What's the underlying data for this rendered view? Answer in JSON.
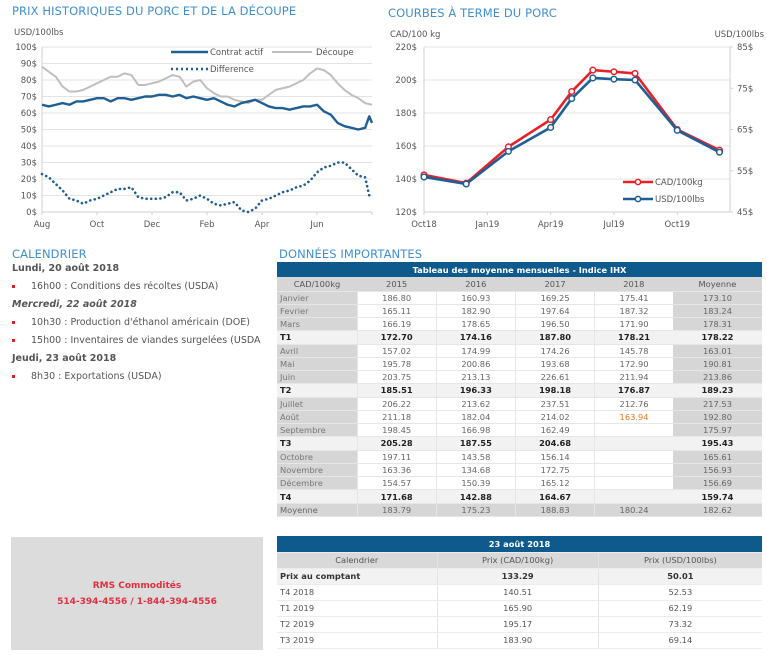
{
  "historical_section": {
    "title": "PRIX HISTORIQUES DU PORC ET DE LA DÉCOUPE"
  },
  "forward_section": {
    "title": "COURBES À TERME DU PORC"
  },
  "chart_data": [
    {
      "type": "line",
      "title": "PRIX HISTORIQUES DU PORC ET DE LA DÉCOUPE",
      "ylabel": "USD/100lbs",
      "xlabel": "",
      "ylim": [
        0,
        100
      ],
      "yticks": [
        "0$",
        "10$",
        "20$",
        "30$",
        "40$",
        "50$",
        "60$",
        "70$",
        "80$",
        "90$",
        "100$"
      ],
      "x_tick_labels": [
        "Aug",
        "Oct",
        "Dec",
        "Feb",
        "Apr",
        "Jun"
      ],
      "x_tick_positions": [
        0,
        2,
        4,
        6,
        8,
        10
      ],
      "x_range": [
        0,
        12
      ],
      "grid": true,
      "legend": "top-right",
      "series": [
        {
          "name": "Contrat actif",
          "style": "solid",
          "color": "#1f5f93",
          "x": [
            0,
            0.25,
            0.5,
            0.75,
            1,
            1.25,
            1.5,
            1.75,
            2,
            2.25,
            2.5,
            2.75,
            3,
            3.25,
            3.5,
            3.75,
            4,
            4.25,
            4.5,
            4.75,
            5,
            5.25,
            5.5,
            5.75,
            6,
            6.25,
            6.5,
            6.75,
            7,
            7.25,
            7.5,
            7.75,
            8,
            8.25,
            8.5,
            8.75,
            9,
            9.25,
            9.5,
            9.75,
            10,
            10.25,
            10.5,
            10.75,
            11,
            11.25,
            11.5,
            11.75,
            11.9,
            12
          ],
          "values": [
            65,
            64,
            65,
            66,
            65,
            67,
            67,
            68,
            69,
            69,
            67,
            69,
            69,
            68,
            69,
            70,
            70,
            71,
            71,
            70,
            71,
            69,
            70,
            69,
            68,
            69,
            67,
            65,
            64,
            66,
            67,
            68,
            66,
            64,
            63,
            63,
            62,
            63,
            64,
            64,
            65,
            61,
            59,
            54,
            52,
            51,
            50,
            51,
            58,
            54
          ]
        },
        {
          "name": "Découpe",
          "style": "solid",
          "color": "#bfbfbf",
          "x": [
            0,
            0.25,
            0.5,
            0.75,
            1,
            1.25,
            1.5,
            1.75,
            2,
            2.25,
            2.5,
            2.75,
            3,
            3.25,
            3.5,
            3.75,
            4,
            4.25,
            4.5,
            4.75,
            5,
            5.25,
            5.5,
            5.75,
            6,
            6.25,
            6.5,
            6.75,
            7,
            7.25,
            7.5,
            7.75,
            8,
            8.25,
            8.5,
            8.75,
            9,
            9.25,
            9.5,
            9.75,
            10,
            10.25,
            10.5,
            10.75,
            11,
            11.25,
            11.5,
            11.75,
            12
          ],
          "values": [
            88,
            85,
            82,
            76,
            73,
            73,
            74,
            76,
            78,
            80,
            82,
            82,
            84,
            83,
            77,
            77,
            78,
            79,
            81,
            83,
            82,
            76,
            79,
            80,
            75,
            72,
            70,
            70,
            68,
            67,
            66,
            68,
            68,
            71,
            74,
            75,
            76,
            78,
            80,
            84,
            87,
            86,
            83,
            78,
            74,
            71,
            69,
            66,
            65
          ]
        },
        {
          "name": "Difference",
          "style": "dotted",
          "color": "#1f5f93",
          "x": [
            0,
            0.25,
            0.5,
            0.75,
            1,
            1.25,
            1.5,
            1.75,
            2,
            2.25,
            2.5,
            2.75,
            3,
            3.25,
            3.5,
            3.75,
            4,
            4.25,
            4.5,
            4.75,
            5,
            5.25,
            5.5,
            5.75,
            6,
            6.25,
            6.5,
            6.75,
            7,
            7.25,
            7.5,
            7.75,
            8,
            8.25,
            8.5,
            8.75,
            9,
            9.25,
            9.5,
            9.75,
            10,
            10.25,
            10.5,
            10.75,
            11,
            11.25,
            11.5,
            11.75,
            11.9,
            12
          ],
          "values": [
            23,
            21,
            17,
            13,
            8,
            7,
            5,
            7,
            8,
            10,
            12,
            14,
            14,
            15,
            9,
            8,
            8,
            8,
            9,
            12,
            12,
            7,
            8,
            10,
            8,
            5,
            4,
            5,
            6,
            1,
            0,
            2,
            7,
            8,
            10,
            12,
            13,
            15,
            16,
            19,
            24,
            27,
            28,
            30,
            30,
            26,
            22,
            21,
            10,
            11
          ]
        }
      ]
    },
    {
      "type": "line",
      "title": "COURBES À TERME DU PORC",
      "ylabel": "CAD/100 kg",
      "ylabel_right": "USD/100lbs",
      "ylim": [
        120,
        220
      ],
      "ylim_right": [
        45,
        85
      ],
      "yticks": [
        "120$",
        "140$",
        "160$",
        "180$",
        "200$",
        "220$"
      ],
      "yticks_right": [
        "45$",
        "55$",
        "65$",
        "75$",
        "85$"
      ],
      "x_tick_labels": [
        "Oct18",
        "Jan19",
        "Apr19",
        "Jul19",
        "Oct19"
      ],
      "x_tick_positions": [
        0,
        3,
        6,
        9,
        12
      ],
      "x_range": [
        0,
        14.5
      ],
      "grid": true,
      "legend": "bottom-right",
      "series": [
        {
          "name": "CAD/100kg",
          "axis": "left",
          "color": "#e8202a",
          "x": [
            0,
            2,
            4,
            6,
            7,
            8,
            9,
            10,
            12,
            14
          ],
          "values": [
            142.5,
            137.5,
            159.5,
            176,
            193,
            206,
            205,
            204,
            170,
            157.5
          ]
        },
        {
          "name": "USD/100lbs",
          "axis": "right",
          "color": "#1f5f93",
          "x": [
            0,
            2,
            4,
            6,
            7,
            8,
            9,
            10,
            12,
            14
          ],
          "values": [
            53.5,
            51.8,
            59.7,
            65.5,
            72.5,
            77.5,
            77.2,
            77.0,
            64.8,
            59.5
          ]
        }
      ]
    }
  ],
  "calendar": {
    "title": "CALENDRIER",
    "days": [
      {
        "date": "Lundi, 20 août 2018",
        "italic": false,
        "events": [
          "16h00 : Conditions des récoltes (USDA)"
        ]
      },
      {
        "date": "Mercredi, 22 août 2018",
        "italic": true,
        "events": [
          "10h30 : Production d'éthanol américain (DOE)",
          "15h00 : Inventaires de viandes surgelées (USDA"
        ]
      },
      {
        "date": "Jeudi, 23 août 2018",
        "italic": false,
        "events": [
          "8h30 : Exportations (USDA)"
        ]
      }
    ]
  },
  "contact": {
    "company": "RMS Commodités",
    "phones": "514-394-4556 / 1-844-394-4556"
  },
  "important": {
    "title": "DONNÉES IMPORTANTES",
    "monthly_table": {
      "caption": "Tableau des moyenne mensuelles - Indice IHX",
      "headers": [
        "CAD/100kg",
        "2015",
        "2016",
        "2017",
        "2018",
        "Moyenne"
      ],
      "rows": [
        {
          "type": "month",
          "cells": [
            "Janvier",
            "186.80",
            "160.93",
            "169.25",
            "175.41",
            "173.10"
          ]
        },
        {
          "type": "month",
          "cells": [
            "Fevrier",
            "165.11",
            "182.90",
            "197.64",
            "187.32",
            "183.24"
          ]
        },
        {
          "type": "month",
          "cells": [
            "Mars",
            "166.19",
            "178.65",
            "196.50",
            "171.90",
            "178.31"
          ]
        },
        {
          "type": "quarter",
          "cells": [
            "T1",
            "172.70",
            "174.16",
            "187.80",
            "178.21",
            "178.22"
          ]
        },
        {
          "type": "month",
          "cells": [
            "Avril",
            "157.02",
            "174.99",
            "174.26",
            "145.78",
            "163.01"
          ]
        },
        {
          "type": "month",
          "cells": [
            "Mai",
            "195.78",
            "200.86",
            "193.68",
            "172.90",
            "190.81"
          ]
        },
        {
          "type": "month",
          "cells": [
            "Juin",
            "203.75",
            "213.13",
            "226.61",
            "211.94",
            "213.86"
          ]
        },
        {
          "type": "quarter",
          "cells": [
            "T2",
            "185.51",
            "196.33",
            "198.18",
            "176.87",
            "189.23"
          ]
        },
        {
          "type": "month",
          "cells": [
            "Juillet",
            "206.22",
            "213.62",
            "237.51",
            "212.76",
            "217.53"
          ]
        },
        {
          "type": "month",
          "cells": [
            "Août",
            "211.18",
            "182.04",
            "214.02",
            "163.94",
            "192.80"
          ],
          "highlight_col": 4
        },
        {
          "type": "month",
          "cells": [
            "Septembre",
            "198.45",
            "166.98",
            "162.49",
            "",
            "175.97"
          ]
        },
        {
          "type": "quarter",
          "cells": [
            "T3",
            "205.28",
            "187.55",
            "204.68",
            "",
            "195.43"
          ]
        },
        {
          "type": "month",
          "cells": [
            "Octobre",
            "197.11",
            "143.58",
            "156.14",
            "",
            "165.61"
          ]
        },
        {
          "type": "month",
          "cells": [
            "Novembre",
            "163.36",
            "134.68",
            "172.75",
            "",
            "156.93"
          ]
        },
        {
          "type": "month",
          "cells": [
            "Décembre",
            "154.57",
            "150.39",
            "165.12",
            "",
            "156.69"
          ]
        },
        {
          "type": "quarter",
          "cells": [
            "T4",
            "171.68",
            "142.88",
            "164.67",
            "",
            "159.74"
          ]
        },
        {
          "type": "mean",
          "cells": [
            "Moyenne",
            "183.79",
            "175.23",
            "188.83",
            "180.24",
            "182.62"
          ]
        }
      ],
      "highlight_color": "#e87722"
    },
    "price_table": {
      "caption": "23 août 2018",
      "headers": [
        "Calendrier",
        "Prix (CAD/100kg)",
        "Prix (USD/100lbs)"
      ],
      "rows": [
        {
          "spot": true,
          "cells": [
            "Prix au comptant",
            "133.29",
            "50.01"
          ]
        },
        {
          "spot": false,
          "cells": [
            "T4 2018",
            "140.51",
            "52.53"
          ]
        },
        {
          "spot": false,
          "cells": [
            "T1 2019",
            "165.90",
            "62.19"
          ]
        },
        {
          "spot": false,
          "cells": [
            "T2 2019",
            "195.17",
            "73.32"
          ]
        },
        {
          "spot": false,
          "cells": [
            "T3 2019",
            "183.90",
            "69.14"
          ]
        }
      ]
    }
  }
}
